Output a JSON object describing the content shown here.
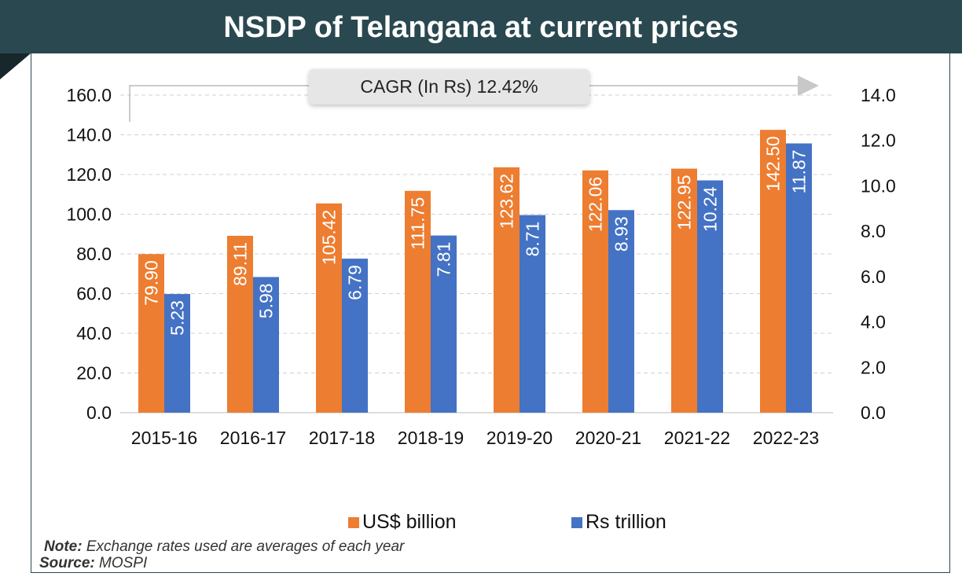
{
  "chart_data": {
    "type": "bar",
    "title": "NSDP of Telangana at current prices",
    "categories": [
      "2015-16",
      "2016-17",
      "2017-18",
      "2018-19",
      "2019-20",
      "2020-21",
      "2021-22",
      "2022-23"
    ],
    "series": [
      {
        "name": "US$ billion",
        "axis": "left",
        "color": "#ed7d31",
        "values": [
          79.9,
          89.11,
          105.42,
          111.75,
          123.62,
          122.06,
          122.95,
          142.5
        ]
      },
      {
        "name": "Rs trillion",
        "axis": "right",
        "color": "#4472c4",
        "values": [
          5.23,
          5.98,
          6.79,
          7.81,
          8.71,
          8.93,
          10.24,
          11.87
        ]
      }
    ],
    "y_left": {
      "ylim": [
        0,
        160
      ],
      "ticks": [
        "0.0",
        "20.0",
        "40.0",
        "60.0",
        "80.0",
        "100.0",
        "120.0",
        "140.0",
        "160.0"
      ]
    },
    "y_right": {
      "ylim": [
        0,
        14
      ],
      "ticks": [
        "0.0",
        "2.0",
        "4.0",
        "6.0",
        "8.0",
        "10.0",
        "12.0",
        "14.0"
      ]
    },
    "grid": true,
    "legend": "bottom",
    "annotation": "CAGR (In Rs) 12.42%"
  },
  "note_label": "Note:",
  "note_text": " Exchange rates used are averages of each year",
  "source_label": "Source:",
  "source_text": " MOSPI"
}
